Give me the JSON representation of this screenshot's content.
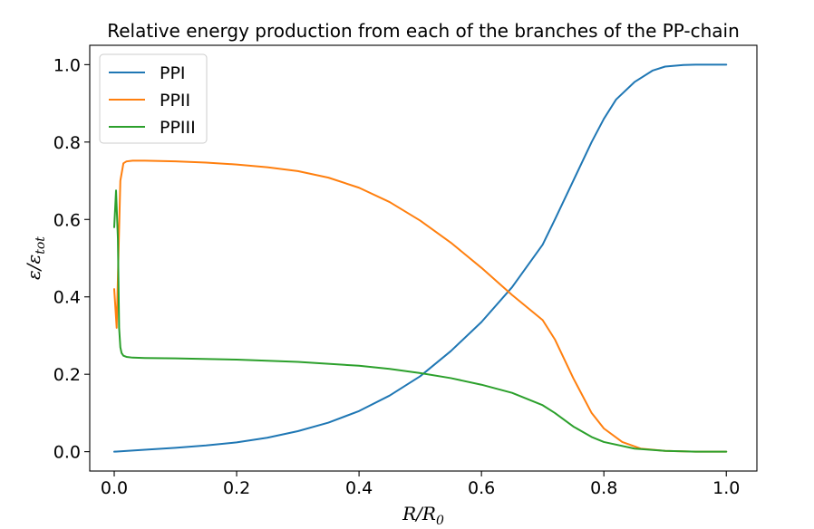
{
  "chart_data": {
    "type": "line",
    "title": "Relative energy production from each of the branches of the PP-chain",
    "xlabel": "R/R0",
    "xlabel_main": "R/R",
    "xlabel_sub": "0",
    "ylabel": "ε/ε_tot",
    "ylabel_main": "ε/ε",
    "ylabel_sub": "tot",
    "xlim": [
      -0.04,
      1.05
    ],
    "ylim": [
      -0.05,
      1.05
    ],
    "xticks": [
      0.0,
      0.2,
      0.4,
      0.6,
      0.8,
      1.0
    ],
    "xtick_labels": [
      "0.0",
      "0.2",
      "0.4",
      "0.6",
      "0.8",
      "1.0"
    ],
    "yticks": [
      0.0,
      0.2,
      0.4,
      0.6,
      0.8,
      1.0
    ],
    "ytick_labels": [
      "0.0",
      "0.2",
      "0.4",
      "0.6",
      "0.8",
      "1.0"
    ],
    "grid": false,
    "legend_position": "top-left",
    "series": [
      {
        "name": "PPI",
        "color": "#1f77b4",
        "x": [
          0.0,
          0.05,
          0.1,
          0.15,
          0.2,
          0.25,
          0.3,
          0.35,
          0.4,
          0.45,
          0.5,
          0.55,
          0.6,
          0.65,
          0.7,
          0.72,
          0.75,
          0.78,
          0.8,
          0.82,
          0.85,
          0.88,
          0.9,
          0.93,
          0.95,
          0.98,
          1.0
        ],
        "y": [
          0.0,
          0.005,
          0.01,
          0.016,
          0.024,
          0.036,
          0.053,
          0.075,
          0.105,
          0.145,
          0.195,
          0.26,
          0.335,
          0.425,
          0.535,
          0.6,
          0.7,
          0.8,
          0.86,
          0.91,
          0.955,
          0.985,
          0.995,
          0.999,
          1.0,
          1.0,
          1.0
        ]
      },
      {
        "name": "PPII",
        "color": "#ff7f0e",
        "x": [
          0.0,
          0.004,
          0.006,
          0.01,
          0.015,
          0.02,
          0.03,
          0.05,
          0.1,
          0.15,
          0.2,
          0.25,
          0.3,
          0.35,
          0.4,
          0.45,
          0.5,
          0.55,
          0.6,
          0.65,
          0.7,
          0.72,
          0.75,
          0.78,
          0.8,
          0.83,
          0.86,
          0.9,
          0.95,
          1.0
        ],
        "y": [
          0.42,
          0.32,
          0.45,
          0.7,
          0.745,
          0.75,
          0.752,
          0.752,
          0.75,
          0.747,
          0.742,
          0.735,
          0.725,
          0.708,
          0.682,
          0.645,
          0.597,
          0.54,
          0.475,
          0.405,
          0.34,
          0.29,
          0.19,
          0.1,
          0.06,
          0.025,
          0.008,
          0.002,
          0.0,
          0.0
        ]
      },
      {
        "name": "PPIII",
        "color": "#2ca02c",
        "x": [
          0.0,
          0.003,
          0.006,
          0.008,
          0.01,
          0.012,
          0.015,
          0.02,
          0.03,
          0.05,
          0.1,
          0.2,
          0.3,
          0.4,
          0.45,
          0.5,
          0.55,
          0.6,
          0.65,
          0.7,
          0.72,
          0.75,
          0.78,
          0.8,
          0.85,
          0.9,
          0.95,
          1.0
        ],
        "y": [
          0.58,
          0.675,
          0.55,
          0.32,
          0.27,
          0.255,
          0.248,
          0.245,
          0.243,
          0.242,
          0.241,
          0.238,
          0.232,
          0.222,
          0.214,
          0.203,
          0.19,
          0.173,
          0.152,
          0.12,
          0.1,
          0.065,
          0.038,
          0.025,
          0.008,
          0.002,
          0.0,
          0.0
        ]
      }
    ]
  }
}
